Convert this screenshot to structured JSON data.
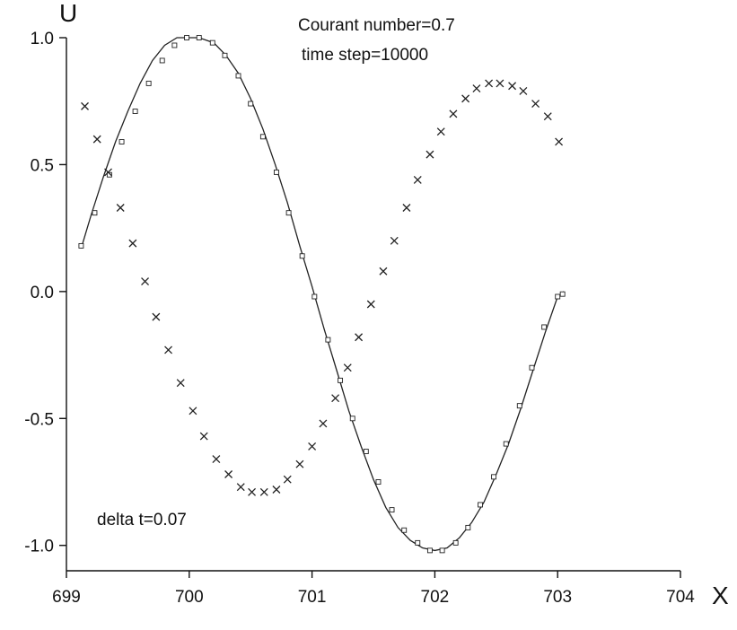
{
  "chart_data": {
    "type": "line",
    "title": "",
    "xlabel": "X",
    "ylabel": "U",
    "xlim": [
      699,
      704
    ],
    "ylim": [
      -1.1,
      1.0
    ],
    "x_ticks": [
      699,
      700,
      701,
      702,
      703,
      704
    ],
    "x_tick_labels": [
      "699",
      "700",
      "701",
      "702",
      "703",
      "704"
    ],
    "y_ticks": [
      1.0,
      0.5,
      0.0,
      -0.5,
      -1.0
    ],
    "y_tick_labels": [
      "1.0",
      "0.5",
      "0.0",
      "-0.5",
      "-1.0"
    ],
    "grid": false,
    "annotations": [
      "Courant number=0.7",
      "time step=10000",
      "delta t=0.07"
    ],
    "series": [
      {
        "style": "line",
        "color": "#222222",
        "x": [
          699.12,
          699.2,
          699.3,
          699.4,
          699.5,
          699.6,
          699.7,
          699.8,
          699.9,
          700.0,
          700.08,
          700.2,
          700.3,
          700.4,
          700.5,
          700.6,
          700.7,
          700.8,
          700.9,
          701.0,
          701.1,
          701.2,
          701.3,
          701.4,
          701.5,
          701.6,
          701.7,
          701.8,
          701.9,
          702.0,
          702.1,
          702.2,
          702.3,
          702.4,
          702.5,
          702.6,
          702.7,
          702.8,
          702.9,
          703.0,
          703.05
        ],
        "y": [
          0.17,
          0.3,
          0.45,
          0.59,
          0.71,
          0.82,
          0.91,
          0.97,
          1.0,
          1.0,
          1.0,
          0.98,
          0.93,
          0.86,
          0.76,
          0.64,
          0.5,
          0.35,
          0.18,
          0.02,
          -0.15,
          -0.31,
          -0.47,
          -0.61,
          -0.74,
          -0.85,
          -0.93,
          -0.98,
          -1.01,
          -1.02,
          -1.01,
          -0.97,
          -0.91,
          -0.83,
          -0.72,
          -0.6,
          -0.46,
          -0.31,
          -0.16,
          -0.02,
          0.0
        ]
      },
      {
        "marker": "square",
        "color": "#222222",
        "x": [
          699.12,
          699.23,
          699.35,
          699.45,
          699.56,
          699.67,
          699.78,
          699.88,
          699.98,
          700.08,
          700.19,
          700.29,
          700.4,
          700.5,
          700.6,
          700.71,
          700.81,
          700.92,
          701.02,
          701.13,
          701.23,
          701.33,
          701.44,
          701.54,
          701.65,
          701.75,
          701.86,
          701.96,
          702.06,
          702.17,
          702.27,
          702.37,
          702.48,
          702.58,
          702.69,
          702.79,
          702.89,
          703.0,
          703.04
        ],
        "y": [
          0.18,
          0.31,
          0.46,
          0.59,
          0.71,
          0.82,
          0.91,
          0.97,
          1.0,
          1.0,
          0.98,
          0.93,
          0.85,
          0.74,
          0.61,
          0.47,
          0.31,
          0.14,
          -0.02,
          -0.19,
          -0.35,
          -0.5,
          -0.63,
          -0.75,
          -0.86,
          -0.94,
          -0.99,
          -1.02,
          -1.02,
          -0.99,
          -0.93,
          -0.84,
          -0.73,
          -0.6,
          -0.45,
          -0.3,
          -0.14,
          -0.02,
          -0.01
        ]
      },
      {
        "marker": "cross",
        "color": "#222222",
        "x": [
          699.15,
          699.25,
          699.34,
          699.44,
          699.54,
          699.64,
          699.73,
          699.83,
          699.93,
          700.03,
          700.12,
          700.22,
          700.32,
          700.42,
          700.51,
          700.61,
          700.71,
          700.8,
          700.9,
          701.0,
          701.09,
          701.19,
          701.29,
          701.38,
          701.48,
          701.58,
          701.67,
          701.77,
          701.86,
          701.96,
          702.05,
          702.15,
          702.25,
          702.34,
          702.44,
          702.53,
          702.63,
          702.72,
          702.82,
          702.92,
          703.01
        ],
        "y": [
          0.73,
          0.6,
          0.47,
          0.33,
          0.19,
          0.04,
          -0.1,
          -0.23,
          -0.36,
          -0.47,
          -0.57,
          -0.66,
          -0.72,
          -0.77,
          -0.79,
          -0.79,
          -0.78,
          -0.74,
          -0.68,
          -0.61,
          -0.52,
          -0.42,
          -0.3,
          -0.18,
          -0.05,
          0.08,
          0.2,
          0.33,
          0.44,
          0.54,
          0.63,
          0.7,
          0.76,
          0.8,
          0.82,
          0.82,
          0.81,
          0.79,
          0.74,
          0.69,
          0.59
        ]
      }
    ]
  }
}
